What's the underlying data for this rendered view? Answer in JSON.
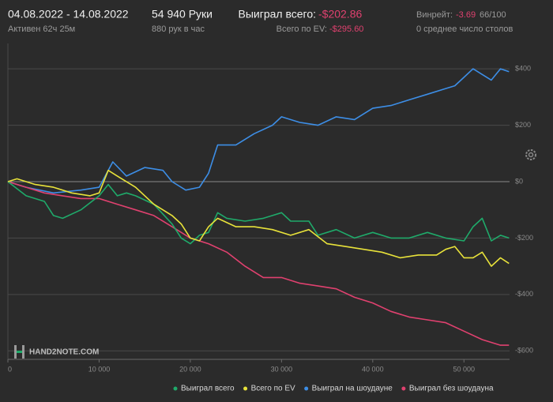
{
  "header": {
    "dates": "04.08.2022 - 14.08.2022",
    "active": "Активен 62ч 25м",
    "hands": "54 940 Руки",
    "hands_per_hour": "880 рук в час",
    "won_label": "Выиграл всего:",
    "won_value": "-$202.86",
    "ev_label": "Всего по EV:",
    "ev_value": "-$295.60",
    "winrate_label": "Винрейт:",
    "winrate_value": "-3.69",
    "winrate_unit": "66/100",
    "tables": "0 среднее число столов",
    "watermark": "HAND2NOTE.COM"
  },
  "chart_data": {
    "type": "line",
    "xlim": [
      0,
      55000
    ],
    "xticks": [
      0,
      {
        "value": 10000,
        "label": "10 000"
      },
      {
        "value": 20000,
        "label": "20 000"
      },
      {
        "value": 30000,
        "label": "30 000"
      },
      {
        "value": 40000,
        "label": "40 000"
      },
      {
        "value": 50000,
        "label": "50 000"
      }
    ],
    "ylim": [
      -630,
      490
    ],
    "yticks": [
      {
        "value": 400,
        "label": "$400"
      },
      {
        "value": 200,
        "label": "$200"
      },
      {
        "value": 0,
        "label": "$0"
      },
      {
        "value": -200,
        "label": "-$200"
      },
      {
        "value": -400,
        "label": "-$400"
      },
      {
        "value": -600,
        "label": "-$600"
      }
    ],
    "grid": true,
    "series": [
      {
        "name": "Выиграл на шоудауне",
        "color": "#3d8ee6",
        "x": [
          0,
          2000,
          5000,
          8000,
          10000,
          11500,
          13000,
          15000,
          17000,
          18000,
          19500,
          21000,
          22000,
          23000,
          25000,
          27000,
          29000,
          30000,
          32000,
          34000,
          36000,
          38000,
          40000,
          42000,
          44000,
          46000,
          48000,
          49000,
          50000,
          51000,
          52000,
          53000,
          54000,
          54940
        ],
        "values": [
          0,
          -20,
          -40,
          -30,
          -20,
          70,
          20,
          50,
          40,
          0,
          -30,
          -20,
          30,
          130,
          130,
          170,
          200,
          230,
          210,
          200,
          230,
          220,
          260,
          270,
          290,
          310,
          330,
          340,
          370,
          400,
          380,
          360,
          400,
          390
        ]
      },
      {
        "name": "Выиграл без шоудауна",
        "color": "#e0416f",
        "x": [
          0,
          2000,
          4000,
          6000,
          8000,
          10000,
          12000,
          14000,
          16000,
          18000,
          20000,
          22000,
          24000,
          26000,
          28000,
          30000,
          32000,
          34000,
          36000,
          38000,
          40000,
          42000,
          44000,
          46000,
          48000,
          50000,
          52000,
          54000,
          54940
        ],
        "values": [
          0,
          -20,
          -40,
          -50,
          -60,
          -60,
          -80,
          -100,
          -120,
          -160,
          -200,
          -220,
          -250,
          -300,
          -340,
          -340,
          -360,
          -370,
          -380,
          -410,
          -430,
          -460,
          -480,
          -490,
          -500,
          -530,
          -560,
          -580,
          -580
        ]
      },
      {
        "name": "Выиграл всего",
        "color": "#1faa6a",
        "x": [
          0,
          2000,
          4000,
          5000,
          6000,
          8000,
          10000,
          11000,
          12000,
          13000,
          14000,
          16000,
          18000,
          19000,
          20000,
          21000,
          22000,
          23000,
          24000,
          26000,
          28000,
          29000,
          30000,
          31000,
          33000,
          34000,
          36000,
          38000,
          40000,
          42000,
          44000,
          46000,
          48000,
          50000,
          51000,
          52000,
          53000,
          54000,
          54940
        ],
        "values": [
          0,
          -50,
          -70,
          -120,
          -130,
          -100,
          -50,
          -10,
          -50,
          -40,
          -50,
          -80,
          -150,
          -200,
          -220,
          -190,
          -180,
          -110,
          -130,
          -140,
          -130,
          -120,
          -110,
          -140,
          -140,
          -190,
          -170,
          -200,
          -180,
          -200,
          -200,
          -180,
          -200,
          -210,
          -160,
          -130,
          -210,
          -190,
          -200
        ]
      },
      {
        "name": "Всего по EV",
        "color": "#e8e23a",
        "x": [
          0,
          1000,
          3000,
          5000,
          7000,
          9000,
          10000,
          11000,
          12000,
          14000,
          16000,
          18000,
          19000,
          20000,
          21000,
          22000,
          23000,
          25000,
          27000,
          29000,
          31000,
          33000,
          35000,
          37000,
          39000,
          41000,
          43000,
          45000,
          47000,
          48000,
          49000,
          50000,
          51000,
          52000,
          53000,
          54000,
          54940
        ],
        "values": [
          0,
          10,
          -10,
          -20,
          -40,
          -50,
          -40,
          40,
          20,
          -20,
          -80,
          -120,
          -150,
          -200,
          -210,
          -160,
          -130,
          -160,
          -160,
          -170,
          -190,
          -170,
          -220,
          -230,
          -240,
          -250,
          -270,
          -260,
          -260,
          -240,
          -230,
          -270,
          -270,
          -250,
          -300,
          -270,
          -290
        ]
      }
    ],
    "legend_order": [
      2,
      3,
      0,
      1
    ]
  }
}
